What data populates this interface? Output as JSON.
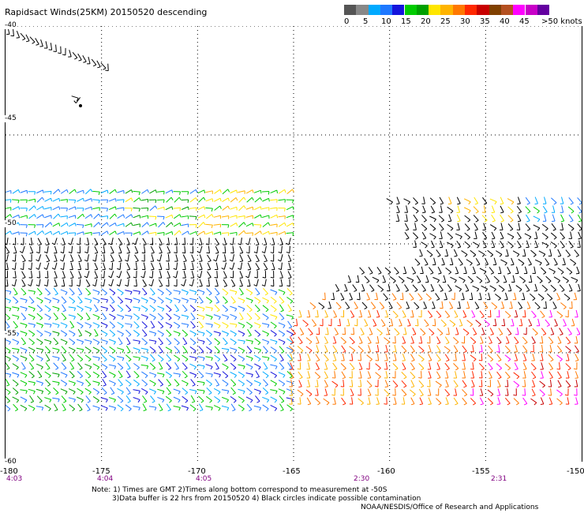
{
  "title": "Rapidsact Winds(25KM) 20150520 descending",
  "legend": {
    "colors": [
      "#555555",
      "#888888",
      "#00aaff",
      "#1e78ff",
      "#1414dc",
      "#00cc00",
      "#00a000",
      "#ffe600",
      "#ffb400",
      "#ff7800",
      "#ff2800",
      "#c80000",
      "#804000",
      "#b45020",
      "#ff00ff",
      "#c800c8",
      "#6400a0"
    ],
    "labels": [
      "0",
      "5",
      "10",
      "15",
      "20",
      "25",
      "30",
      "35",
      "40",
      "45",
      ">50 knots"
    ]
  },
  "map": {
    "lon_ticks": [
      "-180",
      "-175",
      "-170",
      "-165",
      "-160",
      "-155",
      "-150"
    ],
    "lat_ticks": [
      "-40",
      "-45",
      "-50",
      "-55",
      "-60"
    ],
    "pass_times": [
      "4:03",
      "4:04",
      "4:05",
      "2:30",
      "2:31"
    ],
    "wind_regions": [
      {
        "name": "west-pass",
        "lon": [
          -180,
          -165
        ],
        "lat": [
          -47.5,
          -57.5
        ]
      },
      {
        "name": "east-pass",
        "lon": [
          -160,
          -150
        ],
        "lat": [
          -48,
          -57
        ]
      }
    ]
  },
  "notes": {
    "line1": "Note: 1) Times are GMT  2)Times along bottom correspond to measurement at -50S",
    "line2": "3)Data buffer is 22 hrs from 20150520  4) Black circles indicate possible contamination",
    "credit": "NOAA/NESDIS/Office of Research and Applications"
  }
}
